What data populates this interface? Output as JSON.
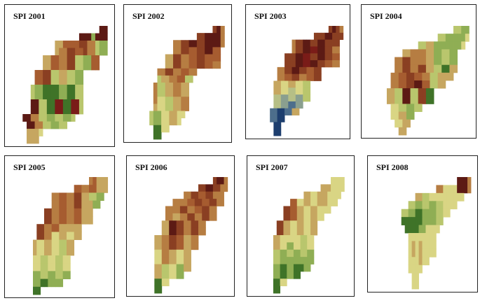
{
  "figure": {
    "panels": [
      {
        "title": "SPI 2001",
        "cells": [
          "......................DD.",
          ".................DDDGDDD.",
          "...........WWHHHHBBSSFGG.",
          "...........WSSBBHHBSSFGG.",
          "........WWHHSSBBFFGGHH...",
          "........WWHHSSBBFFGGHH...",
          "......HHBBFFWWFFGG.......",
          "......HHBBFFWWFFGG.......",
          ".....FGGPPPPGGPPFF.......",
          ".....FGGPPPPGGPPFF.......",
          ".....DDFFPPMMPPMMF.......",
          ".....DDFFPPMMPPMMF.......",
          "...DDSSFFGGFFGGF.........",
          "....DDSSFFGGFF...........",
          "....WWWY.................",
          "....WWW.................."
        ]
      },
      {
        "title": "SPI 2002",
        "cells": [
          ".....................BDS.",
          ".................BBDDDDS.",
          "...........SSBBDDBBDDDDS.",
          "...........SSBBHHBBDDHH..",
          ".........WWBBSSHHBBHHHH..",
          ".........WWBBSSHHBBHHSS..",
          ".......SSBBSSHHSS........",
          ".......FWWSSHHFF.........",
          "......SFFWWSSWW..........",
          "......SFFWWSSWW..........",
          "......SYYFFWWSS..........",
          "......WYYFFWWSS..........",
          ".....FGGYYWWYY...........",
          ".....FGGYYWWY............",
          "......PPYY...............",
          "......PP................."
        ]
      },
      {
        "title": "SPI 2003",
        "cells": [
          ".....................BDBS.",
          ".................BBBDDBBB.",
          "...........SBBDDBBDDBBBB..",
          "...........SBBDDMMDDBBSS..",
          ".........BBBDDMMBBDDBBHH..",
          ".........BBBDDMMDDBBHHSS..",
          ".......SSBBDDBBHHBB.......",
          ".......SSHHBBSSHHBB.......",
          "......WWYYWWYYFF..........",
          "......WWYYLLYYFF..........",
          "......LLTTLLTTFF..........",
          "......LLTTNNTT............",
          ".....NNUUNNWW.............",
          ".....NNUU.................",
          "......UU..................",
          "......UU.................."
        ]
      },
      {
        "title": "SPI 2004",
        "cells": [
          "......................FFGG.",
          "..................FFGGGGGY.",
          ".............FFWWGGGGGGGY..",
          ".........WWSSSSWWGGFFGG....",
          ".......SSBBSSSSWWGGFFGG....",
          ".......SSBBSSBBWWFFPPWW....",
          "......SSHHBBHHSSFFWWWW.....",
          "......SSHHBBDDHHFFWW.......",
          ".....WWFFDDFFBBPP..........",
          ".....WWFFDDFFBBPP..........",
          "......YYFFGGFF.............",
          "......YYWWGG...............",
          ".......YYWW................",
          "........WW................."
        ]
      },
      {
        "title": "SPI 2005",
        "cells": [
          ".....................SHWWW.",
          ".................HHSSHHWWW.",
          "...........SSHHSSBBWWFFGG..",
          "...........SSHHSSBBWWWGG...",
          ".........BBSSHHSSHHWWW.....",
          ".........BBSSHHSSHHWWW.....",
          ".......BBSSHHWWWWWW........",
          ".......BBSSYYWWYYWW........",
          "......WYYWWYYFFWW..........",
          "......WYYWWYYFFWW..........",
          "......YYFFYYFFYY...........",
          "......YYFFYYFFYY...........",
          "......GGFFGGFFGG...........",
          "......GGPPGGGG.............",
          "......PP..................."
        ]
      },
      {
        "title": "SPI 2006",
        "cells": [
          "......................BDDS.",
          "..................BBDDBBSS.",
          "..............SSBBHHBBSSS..",
          "...........SSSSHHBBHHBBSS..",
          ".........SSSSBBSSHHBBSS....",
          ".........SSWWSSBBSSBBSS....",
          "........WWDDBBSSBBSS.......",
          "........WWDDBBSSBBSS.......",
          "......WWSSBBHHWWSS.........",
          "......WWSSBBHHWWSS.........",
          "......YYSSWWYYWW...........",
          "......YYSSWWYYWW...........",
          "......WWFFYYGGWW...........",
          "......WWFFYYGG.............",
          "......PPYY.................",
          "......PP..................."
        ]
      },
      {
        "title": "SPI 2007",
        "cells": [
          ".......................YYYY.",
          "....................WWWYYYY.",
          "...............WWYYWWWYYYY..",
          "...........HHYYWWYYWWWYYY...",
          ".........BBHHWWYYWWYYYY......",
          ".........BBHHWWYYWWYY.......",
          ".......BBWWYYWWYYWW.........",
          ".......BBWWYYWWYYWW.........",
          "......WWYYYYYYFFYY..........",
          "......WWYYGGYYFFYY..........",
          "......FFGGFFGGFFGG..........",
          "......FFGGGGGGGGGG..........",
          "......GGPPGGPPPGG...........",
          "......GGPPGGPP..............",
          "......PPYY..................",
          "......PP...................."
        ]
      },
      {
        "title": "SPI 2008",
        "cells": [
          "........................DDDS.",
          "..................SSYYYYDDDS.",
          "............WWFFYYYYYYYYYY...",
          "..........FFGGFFGGFFYYYY.....",
          "........FFGGPPGGGGFFYY.......",
          "........PPPPPPGGGGFF.........",
          ".........PPPPGGYYYY..........",
          "..........YYYYYYYY...........",
          "..........YWYWYYYY...........",
          "..........YWYWYYYY...........",
          "..........YYYWYY.............",
          "..........YYYY...............",
          "...........YY................",
          "...........YY................"
        ]
      }
    ],
    "legend_colors": {
      "D": "#5c1a14",
      "M": "#7a1c18",
      "B": "#8a3f22",
      "H": "#a65c30",
      "S": "#b67d42",
      "W": "#c6a660",
      "Y": "#d9d584",
      "F": "#b9c66d",
      "G": "#8fae54",
      "P": "#3f7328",
      "L": "#b6bf86",
      "T": "#8a9f8f",
      "N": "#4d6e8c",
      "U": "#1d3e6e"
    }
  }
}
